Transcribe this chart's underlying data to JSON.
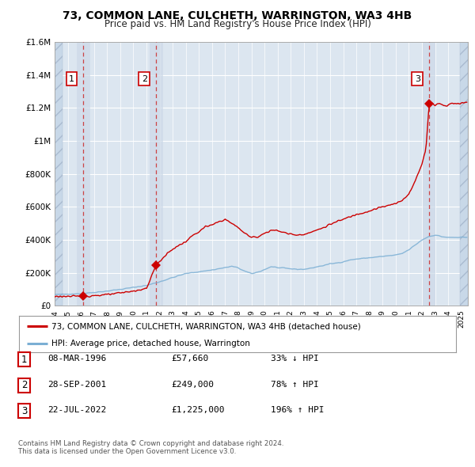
{
  "title": "73, COMMON LANE, CULCHETH, WARRINGTON, WA3 4HB",
  "subtitle": "Price paid vs. HM Land Registry's House Price Index (HPI)",
  "title_fontsize": 10,
  "subtitle_fontsize": 8.5,
  "bg_color": "#ffffff",
  "plot_bg_color": "#dce6f0",
  "grid_color": "#ffffff",
  "red_line_color": "#cc0000",
  "blue_line_color": "#7bafd4",
  "hatch_bg_color": "#c8d8e8",
  "ylim": [
    0,
    1600000
  ],
  "yticks": [
    0,
    200000,
    400000,
    600000,
    800000,
    1000000,
    1200000,
    1400000,
    1600000
  ],
  "ytick_labels": [
    "£0",
    "£200K",
    "£400K",
    "£600K",
    "£800K",
    "£1M",
    "£1.2M",
    "£1.4M",
    "£1.6M"
  ],
  "xmin": 1994.0,
  "xmax": 2025.5,
  "sale_points": [
    {
      "year": 1996.19,
      "price": 57660,
      "label": "1"
    },
    {
      "year": 2001.74,
      "price": 249000,
      "label": "2"
    },
    {
      "year": 2022.55,
      "price": 1225000,
      "label": "3"
    }
  ],
  "legend_entries": [
    {
      "label": "73, COMMON LANE, CULCHETH, WARRINGTON, WA3 4HB (detached house)",
      "color": "#cc0000"
    },
    {
      "label": "HPI: Average price, detached house, Warrington",
      "color": "#7bafd4"
    }
  ],
  "table_entries": [
    {
      "num": "1",
      "date": "08-MAR-1996",
      "price": "£57,660",
      "pct": "33% ↓ HPI"
    },
    {
      "num": "2",
      "date": "28-SEP-2001",
      "price": "£249,000",
      "pct": "78% ↑ HPI"
    },
    {
      "num": "3",
      "date": "22-JUL-2022",
      "price": "£1,225,000",
      "pct": "196% ↑ HPI"
    }
  ],
  "footer": "Contains HM Land Registry data © Crown copyright and database right 2024.\nThis data is licensed under the Open Government Licence v3.0."
}
